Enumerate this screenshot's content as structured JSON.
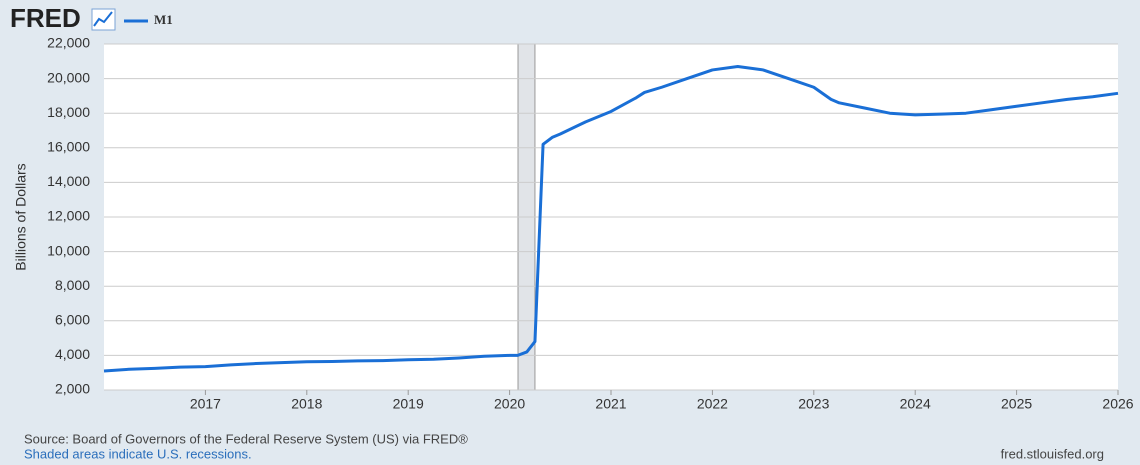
{
  "chart_data": {
    "type": "line",
    "logo": "FRED",
    "ylabel": "Billions of Dollars",
    "source": "Source: Board of Governors of the Federal Reserve System (US) via FRED®",
    "note": "Shaded areas indicate U.S. recessions.",
    "site": "fred.stlouisfed.org",
    "recessions": [
      [
        2020.083,
        2020.25
      ]
    ],
    "recession_color": "#e1e4e8",
    "xlim": [
      2016,
      2026
    ],
    "xticks": [
      2017,
      2018,
      2019,
      2020,
      2021,
      2022,
      2023,
      2024,
      2025,
      2026
    ],
    "ylim": [
      2000,
      22000
    ],
    "yticks": [
      {
        "value": 2000,
        "label": "2,000"
      },
      {
        "value": 4000,
        "label": "4,000"
      },
      {
        "value": 6000,
        "label": "6,000"
      },
      {
        "value": 8000,
        "label": "8,000"
      },
      {
        "value": 10000,
        "label": "10,000"
      },
      {
        "value": 12000,
        "label": "12,000"
      },
      {
        "value": 14000,
        "label": "14,000"
      },
      {
        "value": 16000,
        "label": "16,000"
      },
      {
        "value": 18000,
        "label": "18,000"
      },
      {
        "value": 20000,
        "label": "20,000"
      },
      {
        "value": 22000,
        "label": "22,000"
      }
    ],
    "grid": true,
    "x": [
      2016.0,
      2016.25,
      2016.5,
      2016.75,
      2017.0,
      2017.25,
      2017.5,
      2017.75,
      2018.0,
      2018.25,
      2018.5,
      2018.75,
      2019.0,
      2019.25,
      2019.5,
      2019.75,
      2020.0,
      2020.08,
      2020.17,
      2020.25,
      2020.33,
      2020.42,
      2020.5,
      2020.75,
      2021.0,
      2021.25,
      2021.33,
      2021.5,
      2021.75,
      2022.0,
      2022.25,
      2022.5,
      2022.75,
      2023.0,
      2023.17,
      2023.25,
      2023.5,
      2023.75,
      2024.0,
      2024.25,
      2024.5,
      2024.75,
      2025.0,
      2025.25,
      2025.5,
      2025.75,
      2026.0
    ],
    "series": [
      {
        "name": "M1",
        "color": "#1a6fd6",
        "values": [
          3100,
          3200,
          3250,
          3320,
          3350,
          3450,
          3530,
          3580,
          3630,
          3650,
          3680,
          3700,
          3750,
          3780,
          3850,
          3950,
          4000,
          4000,
          4200,
          4800,
          16200,
          16600,
          16800,
          17500,
          18100,
          18900,
          19200,
          19500,
          20000,
          20500,
          20700,
          20500,
          20000,
          19500,
          18800,
          18600,
          18300,
          18000,
          17900,
          17950,
          18000,
          18200,
          18400,
          18600,
          18800,
          18950,
          19150
        ]
      }
    ]
  }
}
